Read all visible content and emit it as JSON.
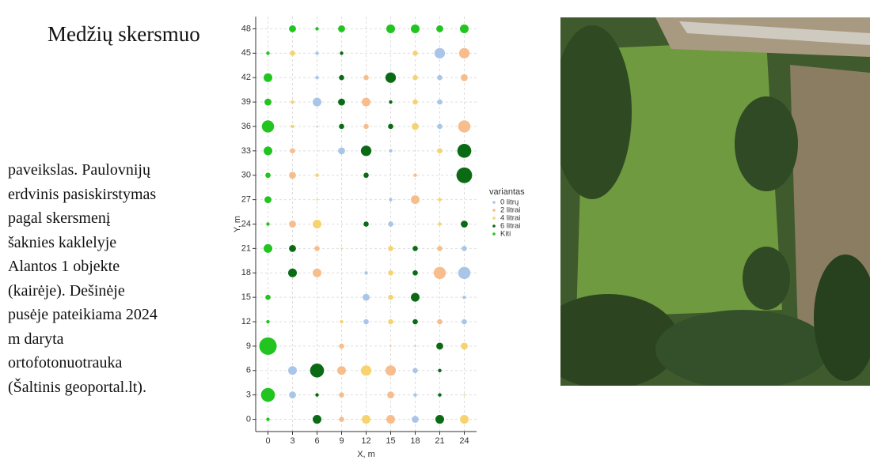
{
  "title": "Medžių skersmuo",
  "caption": [
    "paveikslas. Paulovnijų",
    "erdvinis pasiskirstymas",
    "pagal skersmenį",
    "šaknies kaklelyje",
    "Alantos 1 objekte",
    "(kairėje). Dešinėje",
    "pusėje pateikiama 2024",
    "m daryta",
    "ortofotonuotrauka",
    "(Šaltinis geoportal.lt)."
  ],
  "chart_data": {
    "type": "bubble",
    "xlabel": "X, m",
    "ylabel": "Y, m",
    "legend_title": "variantas",
    "legend": "right",
    "grid": true,
    "xlim": [
      -1.5,
      25.5
    ],
    "ylim": [
      -1.5,
      49.5
    ],
    "xticks": [
      0,
      3,
      6,
      9,
      12,
      15,
      18,
      21,
      24
    ],
    "yticks": [
      0,
      3,
      6,
      9,
      12,
      15,
      18,
      21,
      24,
      27,
      30,
      33,
      36,
      39,
      42,
      45,
      48
    ],
    "series": [
      {
        "name": "0 litrų",
        "color": "#a9c5e8",
        "x": [
          6,
          21,
          6,
          21,
          6,
          21,
          6,
          21,
          9,
          15,
          15,
          15,
          24,
          12,
          24,
          12,
          24,
          12,
          24,
          18,
          3,
          18,
          3,
          18,
          18
        ],
        "y": [
          45,
          45,
          42,
          42,
          39,
          39,
          36,
          36,
          33,
          33,
          27,
          24,
          21,
          18,
          18,
          15,
          15,
          12,
          12,
          9,
          6,
          6,
          3,
          3,
          0
        ],
        "size": [
          2,
          6,
          2,
          3,
          5,
          3,
          1,
          3,
          4,
          2,
          2,
          3,
          3,
          2,
          7,
          4,
          2,
          3,
          3,
          1,
          5,
          3,
          4,
          2,
          4
        ]
      },
      {
        "name": "2 litrai",
        "color": "#f7bd8c",
        "x": [
          24,
          12,
          24,
          12,
          12,
          24,
          3,
          3,
          18,
          18,
          3,
          6,
          21,
          6,
          21,
          21,
          9,
          15,
          9,
          15,
          9,
          15,
          9,
          15
        ],
        "y": [
          45,
          42,
          42,
          39,
          36,
          36,
          33,
          30,
          30,
          27,
          24,
          21,
          21,
          18,
          18,
          12,
          9,
          9,
          6,
          6,
          3,
          3,
          0,
          0
        ],
        "size": [
          6,
          3,
          4,
          5,
          3,
          7,
          3,
          4,
          2,
          5,
          4,
          3,
          3,
          5,
          7,
          3,
          3,
          1,
          5,
          6,
          3,
          4,
          3,
          5
        ]
      },
      {
        "name": "4 litrai",
        "color": "#f6d36e",
        "x": [
          3,
          18,
          18,
          3,
          18,
          3,
          18,
          21,
          6,
          6,
          21,
          6,
          21,
          9,
          15,
          15,
          15,
          9,
          15,
          24,
          12,
          24,
          12,
          24
        ],
        "y": [
          45,
          45,
          42,
          39,
          39,
          36,
          36,
          33,
          30,
          27,
          27,
          24,
          24,
          21,
          21,
          18,
          15,
          12,
          12,
          9,
          6,
          3,
          0,
          0
        ],
        "size": [
          3,
          3,
          3,
          2,
          3,
          2,
          4,
          3,
          2,
          1,
          2,
          5,
          2,
          1,
          3,
          3,
          3,
          2,
          3,
          4,
          6,
          1,
          5,
          5
        ]
      },
      {
        "name": "6 litrai",
        "color": "#0b6b14",
        "x": [
          9,
          9,
          15,
          9,
          15,
          9,
          15,
          12,
          24,
          12,
          24,
          12,
          24,
          3,
          18,
          3,
          18,
          18,
          18,
          21,
          6,
          21,
          6,
          21,
          6,
          21
        ],
        "y": [
          45,
          42,
          42,
          39,
          39,
          36,
          36,
          33,
          33,
          30,
          30,
          24,
          24,
          21,
          21,
          18,
          18,
          15,
          12,
          9,
          6,
          6,
          3,
          3,
          0,
          0
        ],
        "size": [
          2,
          3,
          6,
          4,
          2,
          3,
          3,
          6,
          8,
          3,
          9,
          3,
          4,
          4,
          3,
          5,
          3,
          5,
          3,
          4,
          8,
          2,
          2,
          2,
          5,
          5
        ]
      },
      {
        "name": "Kiti",
        "color": "#22c41f",
        "x": [
          3,
          6,
          9,
          15,
          18,
          21,
          24,
          0,
          0,
          0,
          0,
          0,
          0,
          0,
          0,
          0,
          0,
          0,
          0,
          0,
          0
        ],
        "y": [
          48,
          48,
          48,
          48,
          48,
          48,
          48,
          45,
          42,
          39,
          36,
          33,
          30,
          27,
          24,
          21,
          15,
          12,
          9,
          3,
          0
        ],
        "size": [
          4,
          2,
          4,
          5,
          5,
          4,
          5,
          2,
          5,
          4,
          7,
          5,
          3,
          4,
          2,
          5,
          3,
          2,
          10,
          8,
          2
        ]
      }
    ]
  }
}
